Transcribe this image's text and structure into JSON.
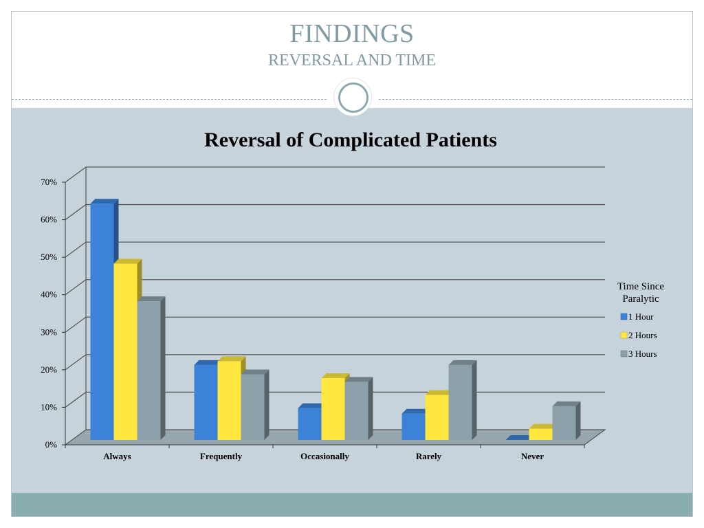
{
  "slide": {
    "title": "FINDINGS",
    "subtitle": "REVERSAL AND TIME"
  },
  "colors": {
    "panel": "#c6d3da",
    "footer": "#8aaeb0",
    "title": "#7f9aa2"
  },
  "chart_data": {
    "type": "bar",
    "title": "Reversal of Complicated Patients",
    "categories": [
      "Always",
      "Frequently",
      "Occasionally",
      "Rarely",
      "Never"
    ],
    "series": [
      {
        "name": "1 Hour",
        "values": [
          63,
          20,
          8.5,
          7,
          0
        ],
        "color": "#3b82d8"
      },
      {
        "name": "2 Hours",
        "values": [
          47,
          21,
          16.5,
          12,
          3
        ],
        "color": "#ffe740"
      },
      {
        "name": "3 Hours",
        "values": [
          37,
          17.5,
          15.5,
          20,
          9
        ],
        "color": "#8ca0aa"
      }
    ],
    "ylim": [
      0,
      70
    ],
    "yticks": [
      "0%",
      "10%",
      "20%",
      "30%",
      "40%",
      "50%",
      "60%",
      "70%"
    ],
    "legend_title": "Time Since Paralytic",
    "legend_title_lines": [
      "Time Since",
      "Paralytic"
    ],
    "legend_position": "right",
    "grid": true,
    "style": "3d-clustered"
  }
}
